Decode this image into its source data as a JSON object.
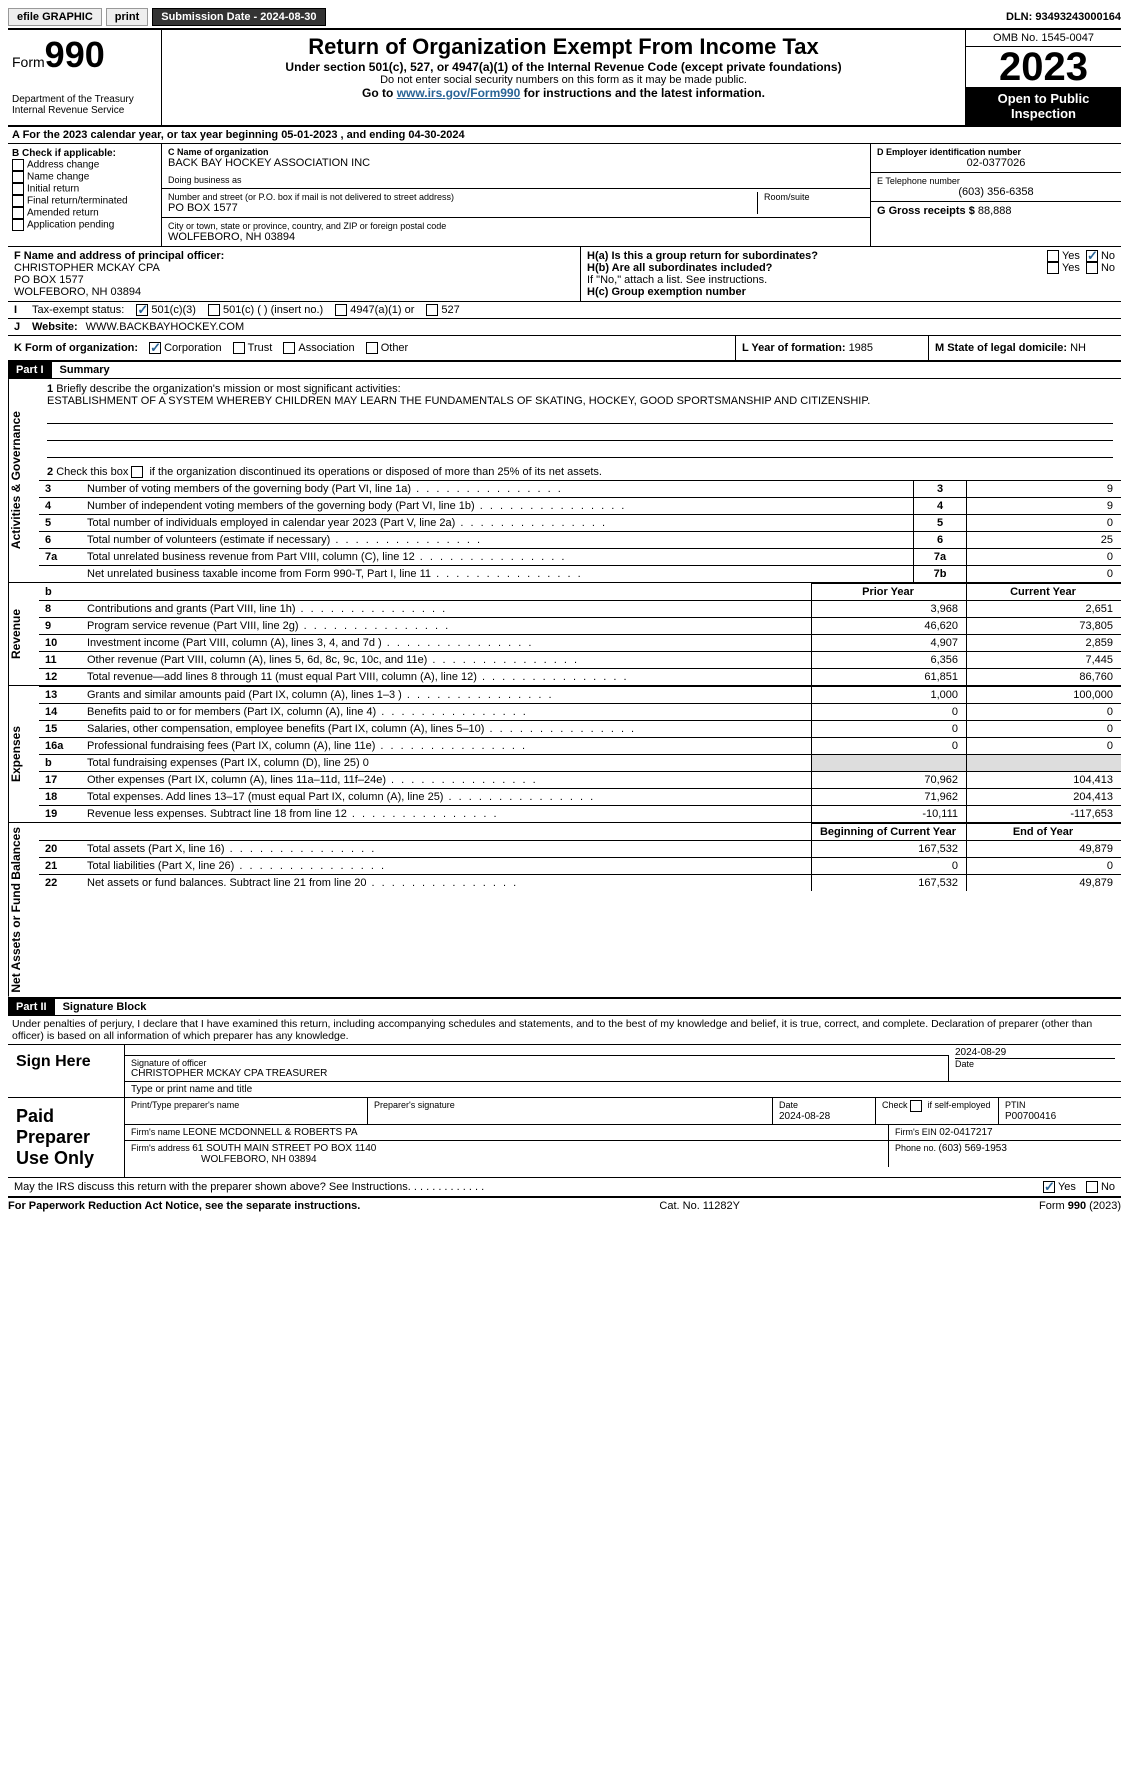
{
  "topbar": {
    "efile": "efile GRAPHIC",
    "print": "print",
    "submission_label": "Submission Date - 2024-08-30",
    "dln": "DLN: 93493243000164"
  },
  "header": {
    "form_prefix": "Form",
    "form_number": "990",
    "dept": "Department of the Treasury",
    "irs": "Internal Revenue Service",
    "title": "Return of Organization Exempt From Income Tax",
    "subtitle": "Under section 501(c), 527, or 4947(a)(1) of the Internal Revenue Code (except private foundations)",
    "note1": "Do not enter social security numbers on this form as it may be made public.",
    "note2_pre": "Go to ",
    "note2_link": "www.irs.gov/Form990",
    "note2_post": " for instructions and the latest information.",
    "omb": "OMB No. 1545-0047",
    "year": "2023",
    "open": "Open to Public Inspection"
  },
  "sectionA": {
    "text": "A For the 2023 calendar year, or tax year beginning 05-01-2023    , and ending 04-30-2024"
  },
  "colB": {
    "header": "B Check if applicable:",
    "items": [
      "Address change",
      "Name change",
      "Initial return",
      "Final return/terminated",
      "Amended return",
      "Application pending"
    ]
  },
  "colC": {
    "name_label": "C Name of organization",
    "name": "BACK BAY HOCKEY ASSOCIATION INC",
    "dba_label": "Doing business as",
    "dba": "",
    "street_label": "Number and street (or P.O. box if mail is not delivered to street address)",
    "street": "PO BOX 1577",
    "room_label": "Room/suite",
    "city_label": "City or town, state or province, country, and ZIP or foreign postal code",
    "city": "WOLFEBORO, NH   03894"
  },
  "colDE": {
    "d_label": "D Employer identification number",
    "d_val": "02-0377026",
    "e_label": "E Telephone number",
    "e_val": "(603) 356-6358",
    "g_label": "G Gross receipts $ ",
    "g_val": "88,888"
  },
  "rowF": {
    "label": "F Name and address of principal officer:",
    "name": "CHRISTOPHER MCKAY CPA",
    "street": "PO BOX 1577",
    "city": "WOLFEBORO, NH   03894"
  },
  "rowH": {
    "ha_label": "H(a)  Is this a group return for subordinates?",
    "hb_label": "H(b)  Are all subordinates included?",
    "hb_note": "If \"No,\" attach a list. See instructions.",
    "hc_label": "H(c)  Group exemption number  ",
    "yes": "Yes",
    "no": "No"
  },
  "rowI": {
    "label": "Tax-exempt status:",
    "opt1": "501(c)(3)",
    "opt2": "501(c) (  ) (insert no.)",
    "opt3": "4947(a)(1) or",
    "opt4": "527"
  },
  "rowJ": {
    "label": "Website: ",
    "val": "WWW.BACKBAYHOCKEY.COM"
  },
  "rowK": {
    "label": "K Form of organization:",
    "opts": [
      "Corporation",
      "Trust",
      "Association",
      "Other"
    ]
  },
  "rowL": {
    "label": "L Year of formation: ",
    "val": "1985"
  },
  "rowM": {
    "label": "M State of legal domicile: ",
    "val": "NH"
  },
  "parts": {
    "p1": "Part I",
    "p1_title": "Summary",
    "p2": "Part II",
    "p2_title": "Signature Block"
  },
  "vtabs": {
    "gov": "Activities & Governance",
    "rev": "Revenue",
    "exp": "Expenses",
    "net": "Net Assets or Fund Balances"
  },
  "summary": {
    "line1_label": "Briefly describe the organization's mission or most significant activities:",
    "line1_text": "ESTABLISHMENT OF A SYSTEM WHEREBY CHILDREN MAY LEARN THE FUNDAMENTALS OF SKATING, HOCKEY, GOOD SPORTSMANSHIP AND CITIZENSHIP.",
    "line2": "Check this box       if the organization discontinued its operations or disposed of more than 25% of its net assets.",
    "rows_gov": [
      {
        "n": "3",
        "t": "Number of voting members of the governing body (Part VI, line 1a)",
        "k": "3",
        "v": "9"
      },
      {
        "n": "4",
        "t": "Number of independent voting members of the governing body (Part VI, line 1b)",
        "k": "4",
        "v": "9"
      },
      {
        "n": "5",
        "t": "Total number of individuals employed in calendar year 2023 (Part V, line 2a)",
        "k": "5",
        "v": "0"
      },
      {
        "n": "6",
        "t": "Total number of volunteers (estimate if necessary)",
        "k": "6",
        "v": "25"
      },
      {
        "n": "7a",
        "t": "Total unrelated business revenue from Part VIII, column (C), line 12",
        "k": "7a",
        "v": "0"
      },
      {
        "n": "",
        "t": "Net unrelated business taxable income from Form 990-T, Part I, line 11",
        "k": "7b",
        "v": "0"
      }
    ],
    "col_headers": {
      "b": "b",
      "prior": "Prior Year",
      "current": "Current Year",
      "boy": "Beginning of Current Year",
      "eoy": "End of Year"
    },
    "rows_rev": [
      {
        "n": "8",
        "t": "Contributions and grants (Part VIII, line 1h)",
        "p": "3,968",
        "c": "2,651"
      },
      {
        "n": "9",
        "t": "Program service revenue (Part VIII, line 2g)",
        "p": "46,620",
        "c": "73,805"
      },
      {
        "n": "10",
        "t": "Investment income (Part VIII, column (A), lines 3, 4, and 7d )",
        "p": "4,907",
        "c": "2,859"
      },
      {
        "n": "11",
        "t": "Other revenue (Part VIII, column (A), lines 5, 6d, 8c, 9c, 10c, and 11e)",
        "p": "6,356",
        "c": "7,445"
      },
      {
        "n": "12",
        "t": "Total revenue—add lines 8 through 11 (must equal Part VIII, column (A), line 12)",
        "p": "61,851",
        "c": "86,760"
      }
    ],
    "rows_exp": [
      {
        "n": "13",
        "t": "Grants and similar amounts paid (Part IX, column (A), lines 1–3 )",
        "p": "1,000",
        "c": "100,000"
      },
      {
        "n": "14",
        "t": "Benefits paid to or for members (Part IX, column (A), line 4)",
        "p": "0",
        "c": "0"
      },
      {
        "n": "15",
        "t": "Salaries, other compensation, employee benefits (Part IX, column (A), lines 5–10)",
        "p": "0",
        "c": "0"
      },
      {
        "n": "16a",
        "t": "Professional fundraising fees (Part IX, column (A), line 11e)",
        "p": "0",
        "c": "0"
      }
    ],
    "row_16b": {
      "n": "b",
      "t": "Total fundraising expenses (Part IX, column (D), line 25) 0"
    },
    "rows_exp2": [
      {
        "n": "17",
        "t": "Other expenses (Part IX, column (A), lines 11a–11d, 11f–24e)",
        "p": "70,962",
        "c": "104,413"
      },
      {
        "n": "18",
        "t": "Total expenses. Add lines 13–17 (must equal Part IX, column (A), line 25)",
        "p": "71,962",
        "c": "204,413"
      },
      {
        "n": "19",
        "t": "Revenue less expenses. Subtract line 18 from line 12",
        "p": "-10,111",
        "c": "-117,653"
      }
    ],
    "rows_net": [
      {
        "n": "20",
        "t": "Total assets (Part X, line 16)",
        "p": "167,532",
        "c": "49,879"
      },
      {
        "n": "21",
        "t": "Total liabilities (Part X, line 26)",
        "p": "0",
        "c": "0"
      },
      {
        "n": "22",
        "t": "Net assets or fund balances. Subtract line 21 from line 20",
        "p": "167,532",
        "c": "49,879"
      }
    ]
  },
  "sig": {
    "declaration": "Under penalties of perjury, I declare that I have examined this return, including accompanying schedules and statements, and to the best of my knowledge and belief, it is true, correct, and complete. Declaration of preparer (other than officer) is based on all information of which preparer has any knowledge.",
    "sign_here": "Sign Here",
    "sig_off": "Signature of officer",
    "officer": "CHRISTOPHER MCKAY CPA  TREASURER",
    "type_name": "Type or print name and title",
    "date1": "2024-08-29",
    "date_label": "Date",
    "paid": "Paid Preparer Use Only",
    "print_name_label": "Print/Type preparer's name",
    "print_name": "",
    "prep_sig": "Preparer's signature",
    "date2": "2024-08-28",
    "check_self": "Check        if self-employed",
    "ptin_label": "PTIN",
    "ptin": "P00700416",
    "firm_name_label": "Firm's name   ",
    "firm_name": "LEONE MCDONNELL & ROBERTS PA",
    "firm_ein_label": "Firm's EIN  ",
    "firm_ein": "02-0417217",
    "firm_addr_label": "Firm's address ",
    "firm_addr1": "61 SOUTH MAIN STREET PO BOX 1140",
    "firm_addr2": "WOLFEBORO, NH   03894",
    "phone_label": "Phone no. ",
    "phone": "(603) 569-1953",
    "discuss": "May the IRS discuss this return with the preparer shown above? See Instructions."
  },
  "footer": {
    "left": "For Paperwork Reduction Act Notice, see the separate instructions.",
    "mid": "Cat. No. 11282Y",
    "right": "Form 990 (2023)"
  }
}
